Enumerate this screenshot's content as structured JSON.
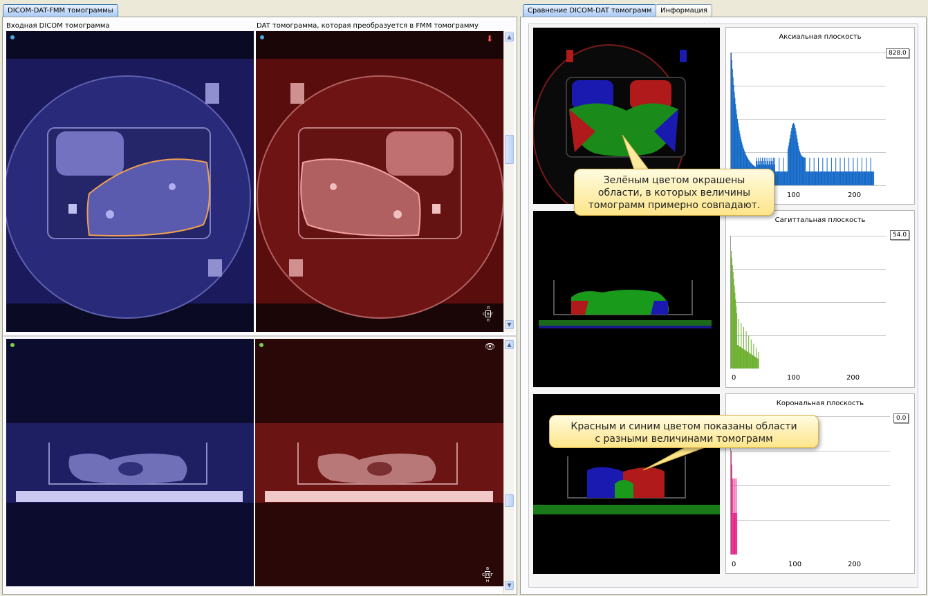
{
  "tabs_left": [
    {
      "label": "DICOM-DAT-FMM томограммы",
      "active": true
    }
  ],
  "tabs_right": [
    {
      "label": "Сравнение DICOM-DAT томограмм",
      "active": true
    },
    {
      "label": "Информация",
      "active": false
    }
  ],
  "left": {
    "input_label": "Входная DICOM томограмма",
    "dat_label": "DAT томограмма, которая преобразуется в FMM томограмму",
    "orient_top": {
      "t": "л",
      "l": "с",
      "c": "в",
      "r": "г",
      "b": "п"
    },
    "orient_bottom": {
      "t": "в",
      "l": "с",
      "c": "п",
      "r": "г",
      "b": "н"
    }
  },
  "right": {
    "histograms": [
      {
        "title": "Аксиальная плоскость",
        "value": "828.0",
        "ticks": [
          "100",
          "200"
        ],
        "color": "#1569c7"
      },
      {
        "title": "Сагиттальная плоскость",
        "value": "54.0",
        "ticks": [
          "0",
          "100",
          "200"
        ],
        "color": "#6cb02e"
      },
      {
        "title": "Корональная плоскость",
        "value": "0.0",
        "ticks": [
          "0",
          "100",
          "200"
        ],
        "color": "#e8298c"
      }
    ],
    "callout_green": [
      "Зелёным цветом окрашены",
      "области, в которых величины",
      "томограмм примерно совпадают."
    ],
    "callout_redblue": [
      "Красным и синим цветом показаны области",
      "с разными величинами томограмм"
    ]
  },
  "colors": {
    "dicom_tint": "#3c3ca8",
    "dat_tint": "#8c1a1a",
    "contour": "#f0a050",
    "accent": "#3c7fb1"
  },
  "icons": [
    "arrow-down-icon",
    "eye-icon",
    "scroll-up-icon",
    "scroll-down-icon"
  ]
}
